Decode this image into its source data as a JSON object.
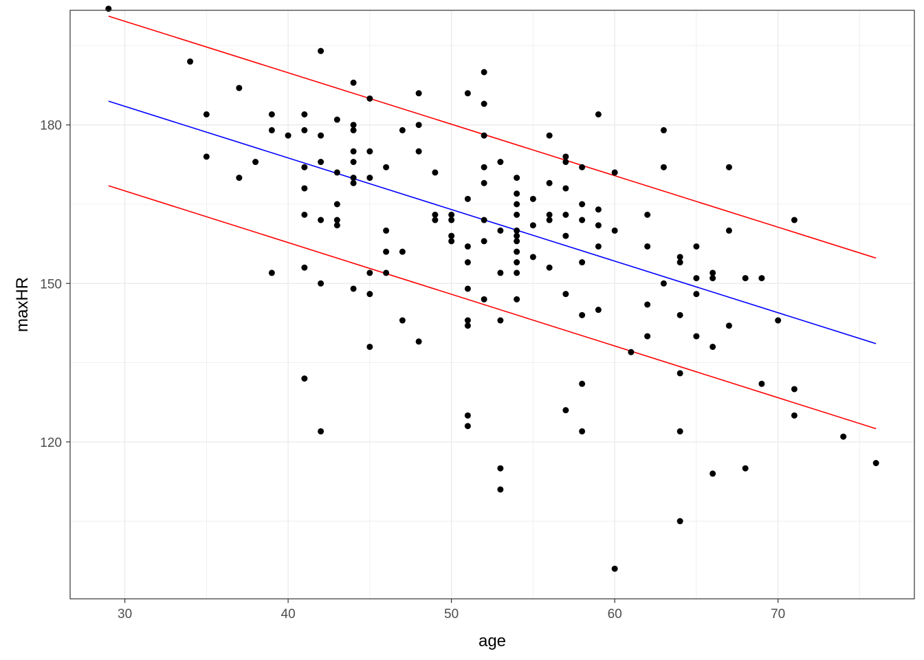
{
  "chart_data": {
    "type": "scatter",
    "xlabel": "age",
    "ylabel": "maxHR",
    "xlim": [
      26.65,
      78.35
    ],
    "ylim": [
      90.3,
      201.7
    ],
    "x_ticks": [
      30,
      40,
      50,
      60,
      70
    ],
    "y_ticks": [
      120,
      150,
      180
    ],
    "grid": true,
    "colors": {
      "points": "#000000",
      "fit": "#0000ff",
      "bands": "#ff0000",
      "grid": "#ebebeb",
      "border": "#333333"
    },
    "points": [
      [
        29,
        202
      ],
      [
        34,
        192
      ],
      [
        35,
        182
      ],
      [
        35,
        174
      ],
      [
        37,
        187
      ],
      [
        37,
        170
      ],
      [
        38,
        173
      ],
      [
        39,
        182
      ],
      [
        39,
        179
      ],
      [
        39,
        152
      ],
      [
        40,
        178
      ],
      [
        41,
        182
      ],
      [
        41,
        179
      ],
      [
        41,
        172
      ],
      [
        41,
        168
      ],
      [
        41,
        163
      ],
      [
        41,
        153
      ],
      [
        41,
        132
      ],
      [
        42,
        194
      ],
      [
        42,
        178
      ],
      [
        42,
        173
      ],
      [
        42,
        162
      ],
      [
        42,
        150
      ],
      [
        42,
        122
      ],
      [
        43,
        181
      ],
      [
        43,
        171
      ],
      [
        43,
        165
      ],
      [
        43,
        162
      ],
      [
        43,
        161
      ],
      [
        44,
        188
      ],
      [
        44,
        180
      ],
      [
        44,
        179
      ],
      [
        44,
        175
      ],
      [
        44,
        173
      ],
      [
        44,
        170
      ],
      [
        44,
        169
      ],
      [
        44,
        149
      ],
      [
        45,
        185
      ],
      [
        45,
        175
      ],
      [
        45,
        170
      ],
      [
        45,
        152
      ],
      [
        45,
        148
      ],
      [
        45,
        138
      ],
      [
        46,
        172
      ],
      [
        46,
        160
      ],
      [
        46,
        156
      ],
      [
        46,
        152
      ],
      [
        47,
        179
      ],
      [
        47,
        156
      ],
      [
        47,
        143
      ],
      [
        48,
        186
      ],
      [
        48,
        180
      ],
      [
        48,
        175
      ],
      [
        48,
        139
      ],
      [
        49,
        171
      ],
      [
        49,
        163
      ],
      [
        49,
        162
      ],
      [
        50,
        163
      ],
      [
        50,
        162
      ],
      [
        50,
        159
      ],
      [
        50,
        158
      ],
      [
        51,
        186
      ],
      [
        51,
        166
      ],
      [
        51,
        157
      ],
      [
        51,
        154
      ],
      [
        51,
        149
      ],
      [
        51,
        143
      ],
      [
        51,
        142
      ],
      [
        51,
        125
      ],
      [
        51,
        123
      ],
      [
        52,
        190
      ],
      [
        52,
        184
      ],
      [
        52,
        178
      ],
      [
        52,
        172
      ],
      [
        52,
        169
      ],
      [
        52,
        162
      ],
      [
        52,
        158
      ],
      [
        52,
        147
      ],
      [
        53,
        173
      ],
      [
        53,
        160
      ],
      [
        53,
        152
      ],
      [
        53,
        143
      ],
      [
        53,
        115
      ],
      [
        53,
        111
      ],
      [
        54,
        170
      ],
      [
        54,
        167
      ],
      [
        54,
        165
      ],
      [
        54,
        163
      ],
      [
        54,
        160
      ],
      [
        54,
        159
      ],
      [
        54,
        158
      ],
      [
        54,
        156
      ],
      [
        54,
        154
      ],
      [
        54,
        152
      ],
      [
        54,
        147
      ],
      [
        55,
        166
      ],
      [
        55,
        161
      ],
      [
        55,
        155
      ],
      [
        56,
        178
      ],
      [
        56,
        169
      ],
      [
        56,
        163
      ],
      [
        56,
        162
      ],
      [
        56,
        153
      ],
      [
        57,
        174
      ],
      [
        57,
        173
      ],
      [
        57,
        168
      ],
      [
        57,
        163
      ],
      [
        57,
        159
      ],
      [
        57,
        148
      ],
      [
        57,
        126
      ],
      [
        58,
        172
      ],
      [
        58,
        165
      ],
      [
        58,
        162
      ],
      [
        58,
        154
      ],
      [
        58,
        144
      ],
      [
        58,
        131
      ],
      [
        58,
        122
      ],
      [
        59,
        182
      ],
      [
        59,
        164
      ],
      [
        59,
        161
      ],
      [
        59,
        157
      ],
      [
        59,
        145
      ],
      [
        60,
        171
      ],
      [
        60,
        160
      ],
      [
        60,
        96
      ],
      [
        61,
        137
      ],
      [
        62,
        163
      ],
      [
        62,
        157
      ],
      [
        62,
        146
      ],
      [
        62,
        140
      ],
      [
        63,
        179
      ],
      [
        63,
        172
      ],
      [
        63,
        150
      ],
      [
        64,
        155
      ],
      [
        64,
        154
      ],
      [
        64,
        144
      ],
      [
        64,
        133
      ],
      [
        64,
        122
      ],
      [
        64,
        105
      ],
      [
        65,
        157
      ],
      [
        65,
        151
      ],
      [
        65,
        148
      ],
      [
        65,
        140
      ],
      [
        66,
        152
      ],
      [
        66,
        151
      ],
      [
        66,
        138
      ],
      [
        66,
        114
      ],
      [
        67,
        172
      ],
      [
        67,
        160
      ],
      [
        67,
        142
      ],
      [
        68,
        151
      ],
      [
        68,
        115
      ],
      [
        69,
        151
      ],
      [
        69,
        131
      ],
      [
        70,
        143
      ],
      [
        71,
        162
      ],
      [
        71,
        130
      ],
      [
        71,
        125
      ],
      [
        74,
        121
      ],
      [
        76,
        116
      ]
    ],
    "fit_line": {
      "x": [
        29,
        76
      ],
      "y": [
        184.5,
        138.6
      ]
    },
    "upper_band": {
      "x": [
        29,
        76
      ],
      "y": [
        200.6,
        154.8
      ]
    },
    "lower_band": {
      "x": [
        29,
        76
      ],
      "y": [
        168.5,
        122.5
      ]
    }
  }
}
